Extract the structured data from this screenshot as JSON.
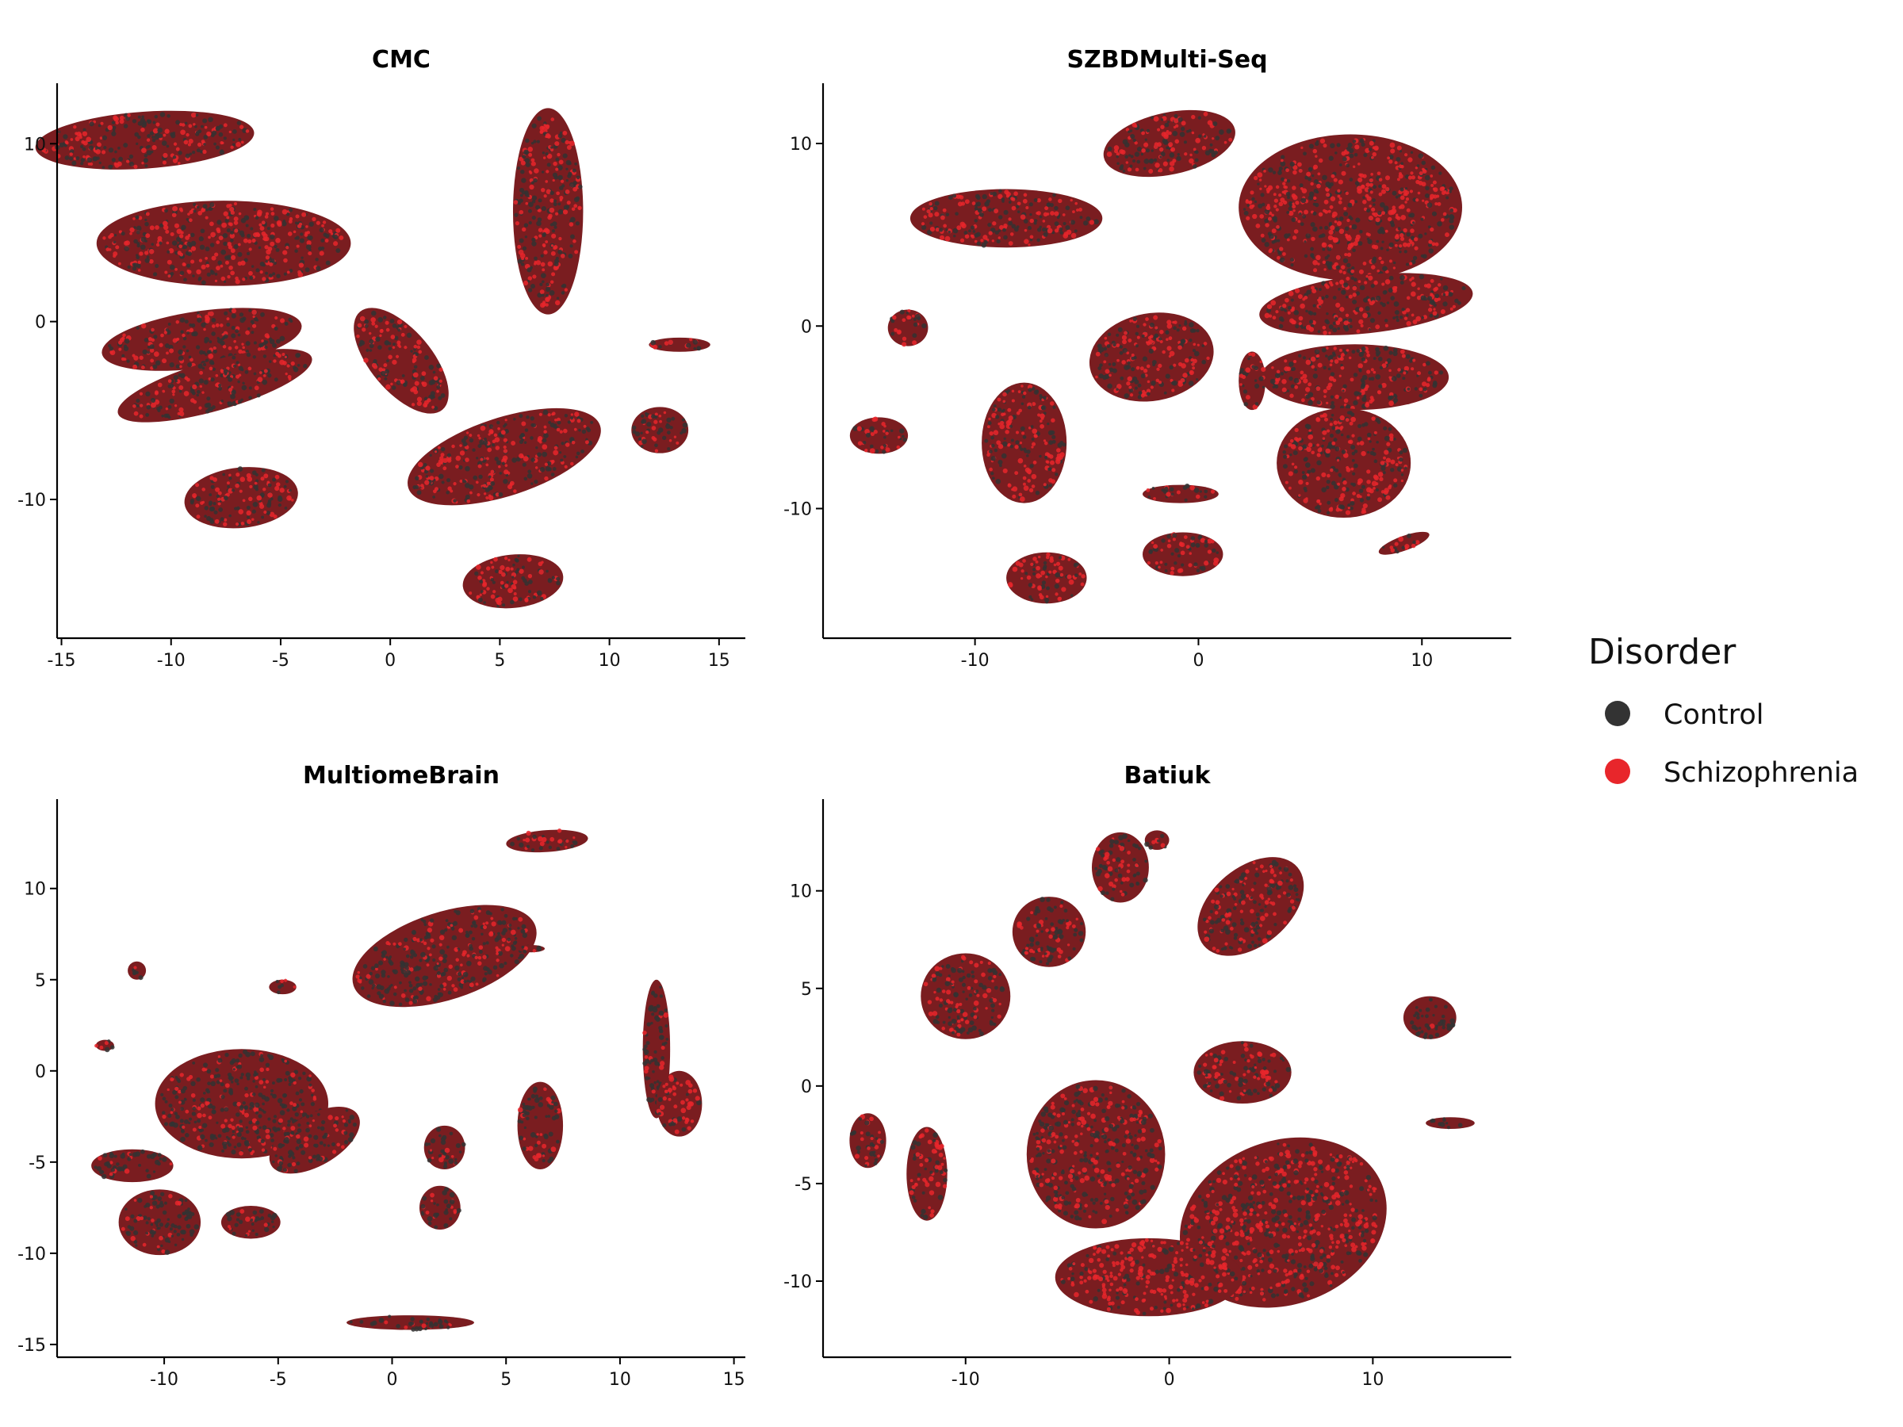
{
  "legend": {
    "title": "Disorder",
    "items": [
      {
        "label": "Control",
        "color": "#333333"
      },
      {
        "label": "Schizophrenia",
        "color": "#e8262b"
      }
    ]
  },
  "chart_data": [
    {
      "type": "scatter",
      "title": "CMC",
      "xlabel": "",
      "ylabel": "",
      "xlim": [
        -15.2,
        16.2
      ],
      "ylim": [
        -17.8,
        13.4
      ],
      "xticks": [
        -15,
        -10,
        -5,
        0,
        5,
        10,
        15
      ],
      "yticks": [
        -10,
        0,
        10
      ],
      "clusters": [
        {
          "x": -11.2,
          "y": 10.2,
          "rx": 5.0,
          "ry": 1.6,
          "angle": -4,
          "mix": 0.55
        },
        {
          "x": -7.6,
          "y": 4.4,
          "rx": 5.8,
          "ry": 2.4,
          "angle": 0,
          "mix": 0.5
        },
        {
          "x": -8.6,
          "y": -1.0,
          "rx": 4.6,
          "ry": 1.6,
          "angle": -8,
          "mix": 0.55
        },
        {
          "x": -8.0,
          "y": -3.6,
          "rx": 4.6,
          "ry": 1.4,
          "angle": -16,
          "mix": 0.55
        },
        {
          "x": 7.2,
          "y": 6.2,
          "rx": 1.6,
          "ry": 5.8,
          "angle": 0,
          "mix": 0.45
        },
        {
          "x": 0.5,
          "y": -2.2,
          "rx": 1.4,
          "ry": 3.6,
          "angle": -40,
          "mix": 0.5
        },
        {
          "x": 13.2,
          "y": -1.3,
          "rx": 1.4,
          "ry": 0.4,
          "angle": 0,
          "mix": 0.55
        },
        {
          "x": 12.3,
          "y": -6.1,
          "rx": 1.3,
          "ry": 1.3,
          "angle": 0,
          "mix": 0.5
        },
        {
          "x": 5.2,
          "y": -7.6,
          "rx": 4.6,
          "ry": 2.2,
          "angle": -18,
          "mix": 0.5
        },
        {
          "x": -6.8,
          "y": -9.9,
          "rx": 2.6,
          "ry": 1.7,
          "angle": -6,
          "mix": 0.55
        },
        {
          "x": 5.6,
          "y": -14.6,
          "rx": 2.3,
          "ry": 1.5,
          "angle": -6,
          "mix": 0.4
        }
      ]
    },
    {
      "type": "scatter",
      "title": "SZBDMulti-Seq",
      "xlabel": "",
      "ylabel": "",
      "xlim": [
        -16.8,
        14.0
      ],
      "ylim": [
        -17.1,
        13.3
      ],
      "xticks": [
        -10,
        0,
        10
      ],
      "yticks": [
        -10,
        0,
        10
      ],
      "clusters": [
        {
          "x": -1.3,
          "y": 10.0,
          "rx": 3.0,
          "ry": 1.7,
          "angle": -12,
          "mix": 0.5
        },
        {
          "x": -8.6,
          "y": 5.9,
          "rx": 4.3,
          "ry": 1.6,
          "angle": 0,
          "mix": 0.5
        },
        {
          "x": 6.8,
          "y": 6.5,
          "rx": 5.0,
          "ry": 4.0,
          "angle": 0,
          "mix": 0.45
        },
        {
          "x": 7.5,
          "y": 1.2,
          "rx": 4.8,
          "ry": 1.6,
          "angle": -6,
          "mix": 0.5
        },
        {
          "x": 7.0,
          "y": -2.8,
          "rx": 4.2,
          "ry": 1.8,
          "angle": 0,
          "mix": 0.55
        },
        {
          "x": 6.5,
          "y": -7.5,
          "rx": 3.0,
          "ry": 3.0,
          "angle": 0,
          "mix": 0.5
        },
        {
          "x": -13.0,
          "y": -0.1,
          "rx": 0.9,
          "ry": 1.0,
          "angle": 0,
          "mix": 0.5
        },
        {
          "x": -2.1,
          "y": -1.7,
          "rx": 2.8,
          "ry": 2.4,
          "angle": -10,
          "mix": 0.45
        },
        {
          "x": -14.3,
          "y": -6.0,
          "rx": 1.3,
          "ry": 1.0,
          "angle": 0,
          "mix": 0.5
        },
        {
          "x": -7.8,
          "y": -6.4,
          "rx": 1.9,
          "ry": 3.3,
          "angle": 0,
          "mix": 0.5
        },
        {
          "x": -0.8,
          "y": -9.2,
          "rx": 1.7,
          "ry": 0.5,
          "angle": 0,
          "mix": 0.45
        },
        {
          "x": -0.7,
          "y": -12.5,
          "rx": 1.8,
          "ry": 1.2,
          "angle": 0,
          "mix": 0.5
        },
        {
          "x": 9.2,
          "y": -11.9,
          "rx": 1.2,
          "ry": 0.4,
          "angle": -20,
          "mix": 0.5
        },
        {
          "x": -6.8,
          "y": -13.8,
          "rx": 1.8,
          "ry": 1.4,
          "angle": 0,
          "mix": 0.45
        },
        {
          "x": 2.4,
          "y": -3.0,
          "rx": 0.6,
          "ry": 1.6,
          "angle": 0,
          "mix": 0.5
        }
      ]
    },
    {
      "type": "scatter",
      "title": "MultiomeBrain",
      "xlabel": "",
      "ylabel": "",
      "xlim": [
        -14.7,
        15.5
      ],
      "ylim": [
        -15.7,
        14.9
      ],
      "xticks": [
        -10,
        -5,
        0,
        5,
        10,
        15
      ],
      "yticks": [
        -15,
        -10,
        -5,
        0,
        5,
        10
      ],
      "clusters": [
        {
          "x": 6.8,
          "y": 12.6,
          "rx": 1.8,
          "ry": 0.6,
          "angle": -4,
          "mix": 0.6
        },
        {
          "x": 2.3,
          "y": 6.3,
          "rx": 4.2,
          "ry": 2.4,
          "angle": -18,
          "mix": 0.7
        },
        {
          "x": 6.1,
          "y": 6.7,
          "rx": 0.6,
          "ry": 0.2,
          "angle": 0,
          "mix": 0.7
        },
        {
          "x": -11.2,
          "y": 5.5,
          "rx": 0.4,
          "ry": 0.5,
          "angle": 0,
          "mix": 0.6
        },
        {
          "x": -4.8,
          "y": 4.6,
          "rx": 0.6,
          "ry": 0.4,
          "angle": 0,
          "mix": 0.6
        },
        {
          "x": -12.6,
          "y": 1.4,
          "rx": 0.4,
          "ry": 0.3,
          "angle": 0,
          "mix": 0.6
        },
        {
          "x": -6.6,
          "y": -1.8,
          "rx": 3.8,
          "ry": 3.0,
          "angle": 0,
          "mix": 0.75
        },
        {
          "x": -3.4,
          "y": -3.8,
          "rx": 2.2,
          "ry": 1.4,
          "angle": -30,
          "mix": 0.7
        },
        {
          "x": -10.2,
          "y": -8.3,
          "rx": 1.8,
          "ry": 1.8,
          "angle": 0,
          "mix": 0.8
        },
        {
          "x": -11.4,
          "y": -5.2,
          "rx": 1.8,
          "ry": 0.9,
          "angle": 0,
          "mix": 0.8
        },
        {
          "x": -6.2,
          "y": -8.3,
          "rx": 1.3,
          "ry": 0.9,
          "angle": 0,
          "mix": 0.75
        },
        {
          "x": 2.3,
          "y": -4.2,
          "rx": 0.9,
          "ry": 1.2,
          "angle": 0,
          "mix": 0.75
        },
        {
          "x": 2.1,
          "y": -7.5,
          "rx": 0.9,
          "ry": 1.2,
          "angle": 0,
          "mix": 0.75
        },
        {
          "x": 6.5,
          "y": -3.0,
          "rx": 1.0,
          "ry": 2.4,
          "angle": 0,
          "mix": 0.75
        },
        {
          "x": 11.6,
          "y": 1.2,
          "rx": 0.6,
          "ry": 3.8,
          "angle": 0,
          "mix": 0.85
        },
        {
          "x": 12.6,
          "y": -1.8,
          "rx": 1.0,
          "ry": 1.8,
          "angle": 0,
          "mix": 0.3
        },
        {
          "x": 0.8,
          "y": -13.8,
          "rx": 2.8,
          "ry": 0.4,
          "angle": 0,
          "mix": 0.8
        }
      ]
    },
    {
      "type": "scatter",
      "title": "Batiuk",
      "xlabel": "",
      "ylabel": "",
      "xlim": [
        -17.0,
        16.8
      ],
      "ylim": [
        -13.9,
        14.7
      ],
      "xticks": [
        -10,
        0,
        10
      ],
      "yticks": [
        -10,
        -5,
        0,
        5,
        10
      ],
      "clusters": [
        {
          "x": -2.4,
          "y": 11.2,
          "rx": 1.4,
          "ry": 1.8,
          "angle": 0,
          "mix": 0.6
        },
        {
          "x": -0.6,
          "y": 12.6,
          "rx": 0.6,
          "ry": 0.5,
          "angle": 0,
          "mix": 0.6
        },
        {
          "x": -5.9,
          "y": 7.9,
          "rx": 1.8,
          "ry": 1.8,
          "angle": 0,
          "mix": 0.6
        },
        {
          "x": -10.0,
          "y": 4.6,
          "rx": 2.2,
          "ry": 2.2,
          "angle": 0,
          "mix": 0.55
        },
        {
          "x": 4.0,
          "y": 9.2,
          "rx": 3.0,
          "ry": 2.0,
          "angle": -40,
          "mix": 0.55
        },
        {
          "x": 12.8,
          "y": 3.5,
          "rx": 1.3,
          "ry": 1.1,
          "angle": 0,
          "mix": 0.9
        },
        {
          "x": 13.8,
          "y": -1.9,
          "rx": 1.2,
          "ry": 0.3,
          "angle": 0,
          "mix": 0.7
        },
        {
          "x": 3.6,
          "y": 0.7,
          "rx": 2.4,
          "ry": 1.6,
          "angle": 0,
          "mix": 0.5
        },
        {
          "x": -3.6,
          "y": -3.5,
          "rx": 3.4,
          "ry": 3.8,
          "angle": 0,
          "mix": 0.6
        },
        {
          "x": 5.6,
          "y": -7.0,
          "rx": 5.2,
          "ry": 4.2,
          "angle": -20,
          "mix": 0.5
        },
        {
          "x": -1.0,
          "y": -9.8,
          "rx": 4.6,
          "ry": 2.0,
          "angle": 0,
          "mix": 0.3
        },
        {
          "x": -14.8,
          "y": -2.8,
          "rx": 0.9,
          "ry": 1.4,
          "angle": 0,
          "mix": 0.6
        },
        {
          "x": -11.9,
          "y": -4.5,
          "rx": 1.0,
          "ry": 2.4,
          "angle": 0,
          "mix": 0.55
        }
      ]
    }
  ]
}
